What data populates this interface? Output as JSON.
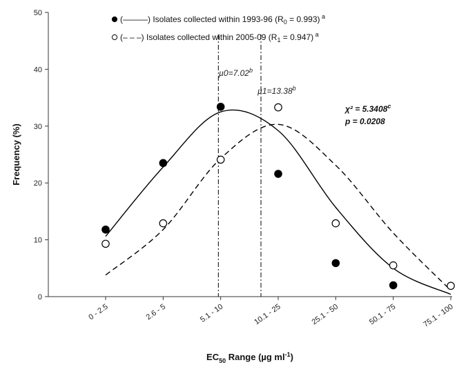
{
  "chart_data": {
    "type": "scatter",
    "categories": [
      "0 - 2.5",
      "2.6 - 5",
      "5.1 - 10",
      "10.1 - 25",
      "25.1 - 50",
      "50.1 - 75",
      "75.1 - 100"
    ],
    "xlabel_main": "EC",
    "xlabel_sub": "50",
    "xlabel_rest": " Range (µg ml",
    "xlabel_sup": "-1",
    "xlabel_close": ")",
    "ylabel": "Frequency (%)",
    "ylim": [
      0,
      50
    ],
    "yticks": [
      "0",
      "10",
      "20",
      "30",
      "40",
      "50"
    ],
    "series": [
      {
        "name": "Isolates collected within 1993-96",
        "legend_full": "(———) Isolates collected within 1993-96 (R",
        "legend_sub": "0",
        "legend_end": " = 0.993)",
        "legend_sup": "a",
        "marker": "filled",
        "line": "solid",
        "values": [
          11.8,
          23.5,
          33.4,
          21.6,
          5.9,
          2.0,
          null
        ],
        "fit": [
          10.6,
          22.8,
          32.5,
          29.2,
          15.7,
          5.0,
          0.4
        ]
      },
      {
        "name": "Isolates collected within 2005-09",
        "legend_full": "(– – –) Isolates collected within 2005-09 (R",
        "legend_sub": "1",
        "legend_end": " = 0.947)",
        "legend_sup": "a",
        "marker": "open",
        "line": "dashed",
        "values": [
          9.3,
          12.9,
          24.1,
          33.3,
          12.9,
          5.5,
          1.9
        ],
        "fit": [
          3.8,
          11.8,
          24.3,
          30.3,
          23.1,
          11.2,
          1.1
        ]
      }
    ],
    "annotations": {
      "mu0_text": "µ0=7.02",
      "mu0_sup": "b",
      "mu0_x": 1.96,
      "mu1_text": "µ1=13.38",
      "mu1_sup": "b",
      "mu1_x": 2.7,
      "chi_text": "χ² = 5.3408",
      "chi_sup": "c",
      "p_text": "p = 0.0208"
    }
  }
}
